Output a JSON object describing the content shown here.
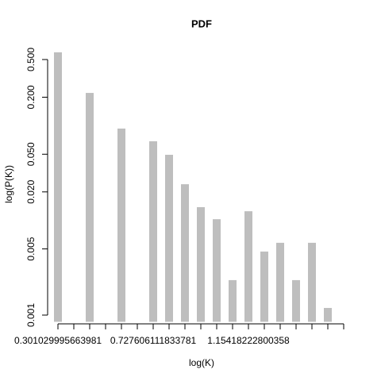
{
  "chart_data": {
    "type": "bar",
    "title": "PDF",
    "x_label": "log(K)",
    "y_label": "log(P(K))",
    "categories": [
      "0.301029995663981",
      null,
      null,
      null,
      null,
      null,
      "0.727606111833781",
      null,
      null,
      null,
      null,
      null,
      "1.15418222800358",
      null,
      null,
      null,
      null,
      null,
      null
    ],
    "values": [
      0.596,
      null,
      0.222,
      null,
      0.0933,
      null,
      0.0685,
      0.0493,
      0.0241,
      0.0138,
      0.0103,
      0.00234,
      0.0125,
      0.00469,
      0.0058,
      0.00234,
      0.0058,
      0.00119,
      null
    ],
    "color": "#bebebe",
    "log_y": true,
    "ylim": [
      0.00085,
      0.65
    ],
    "yticks": [
      0.001,
      0.005,
      {
        "value": 0.02,
        "label": "0.020"
      },
      {
        "value": 0.05,
        "label": "0.050"
      },
      {
        "value": 0.2,
        "label": "0.200"
      },
      {
        "value": 0.5,
        "label": "0.500"
      }
    ],
    "grid": false
  }
}
